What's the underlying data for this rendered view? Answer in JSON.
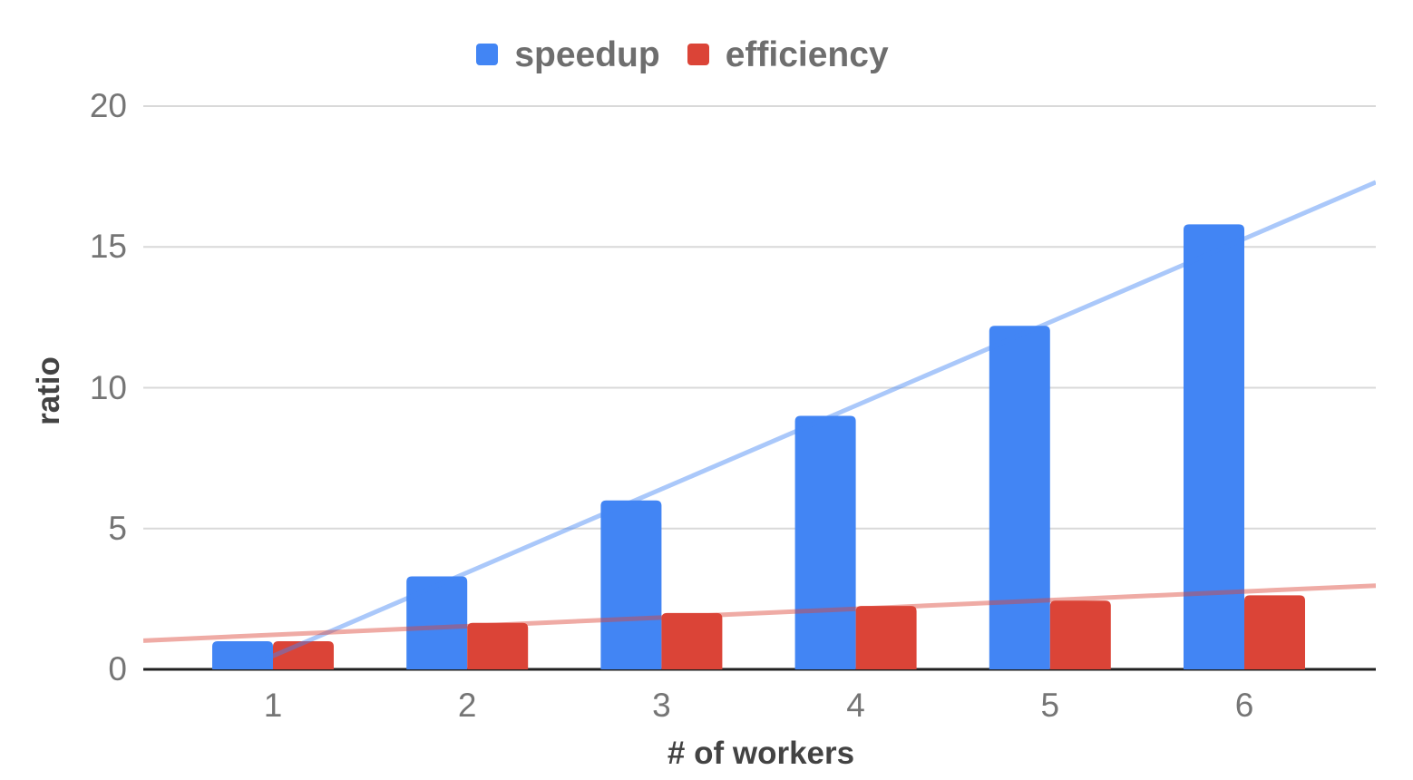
{
  "chart_data": {
    "type": "bar",
    "categories": [
      "1",
      "2",
      "3",
      "4",
      "5",
      "6"
    ],
    "series": [
      {
        "name": "speedup",
        "color": "#4285f4",
        "values": [
          1,
          3.3,
          6,
          9,
          12.2,
          15.8
        ]
      },
      {
        "name": "efficiency",
        "color": "#db4437",
        "values": [
          1,
          1.65,
          2,
          2.25,
          2.44,
          2.63
        ]
      }
    ],
    "trendlines": {
      "type": "linear",
      "per_series": true,
      "opacity": 0.45
    },
    "xlabel": "# of workers",
    "ylabel": "ratio",
    "yticks": [
      0,
      5,
      10,
      15,
      20
    ],
    "ylim": [
      0,
      20
    ],
    "legend_position": "top",
    "grid": "horizontal",
    "style_colors": {
      "gridline": "#d9d9d9",
      "baseline": "#212121",
      "tick_text": "#757575",
      "axis_title_text": "#434343",
      "legend_text": "#6e6e6e",
      "background": "#ffffff"
    }
  },
  "legend": {
    "items": [
      {
        "label": "speedup",
        "color": "#4285f4"
      },
      {
        "label": "efficiency",
        "color": "#db4437"
      }
    ]
  },
  "axes": {
    "x_title": "# of workers",
    "y_title": "ratio"
  }
}
